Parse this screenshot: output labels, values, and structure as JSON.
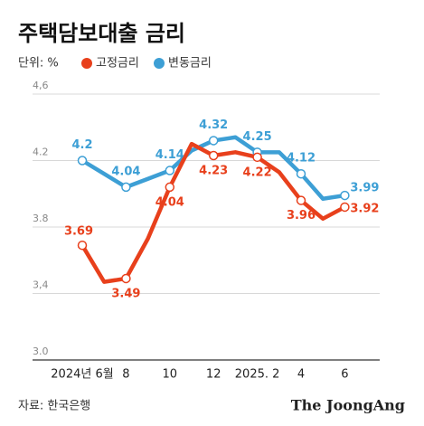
{
  "chart_data": {
    "type": "line",
    "title": "주택담보대출 금리",
    "unit_label": "단위: %",
    "source": "자료: 한국은행",
    "logo": "The JoongAng",
    "categories": [
      "2024년 6월",
      null,
      "8",
      null,
      "10",
      null,
      "12",
      null,
      "2025. 2",
      null,
      "4",
      null,
      "6"
    ],
    "series": [
      {
        "name": "변동금리",
        "color": "#3d9fd5",
        "values": [
          4.2,
          4.12,
          4.04,
          4.09,
          4.14,
          4.26,
          4.32,
          4.34,
          4.25,
          4.25,
          4.12,
          3.97,
          3.99
        ],
        "value_labels": [
          "4.2",
          null,
          "4.04",
          null,
          "4.14",
          null,
          "4.32",
          null,
          "4.25",
          null,
          "4.12",
          null,
          "3.99"
        ]
      },
      {
        "name": "고정금리",
        "color": "#e8401c",
        "values": [
          3.69,
          3.47,
          3.49,
          3.73,
          4.04,
          4.3,
          4.23,
          4.25,
          4.22,
          4.13,
          3.96,
          3.85,
          3.92
        ],
        "value_labels": [
          "3.69",
          null,
          "3.49",
          null,
          "4.04",
          null,
          "4.23",
          null,
          "4.22",
          null,
          "3.96",
          null,
          "3.92"
        ]
      }
    ],
    "ylim": [
      3.0,
      4.6
    ],
    "yticks": [
      {
        "value": 3.0,
        "label": "3.0"
      },
      {
        "value": 3.4,
        "label": "3,4"
      },
      3.8,
      4.2,
      {
        "value": 4.6,
        "label": "4,6"
      }
    ],
    "grid": true
  }
}
